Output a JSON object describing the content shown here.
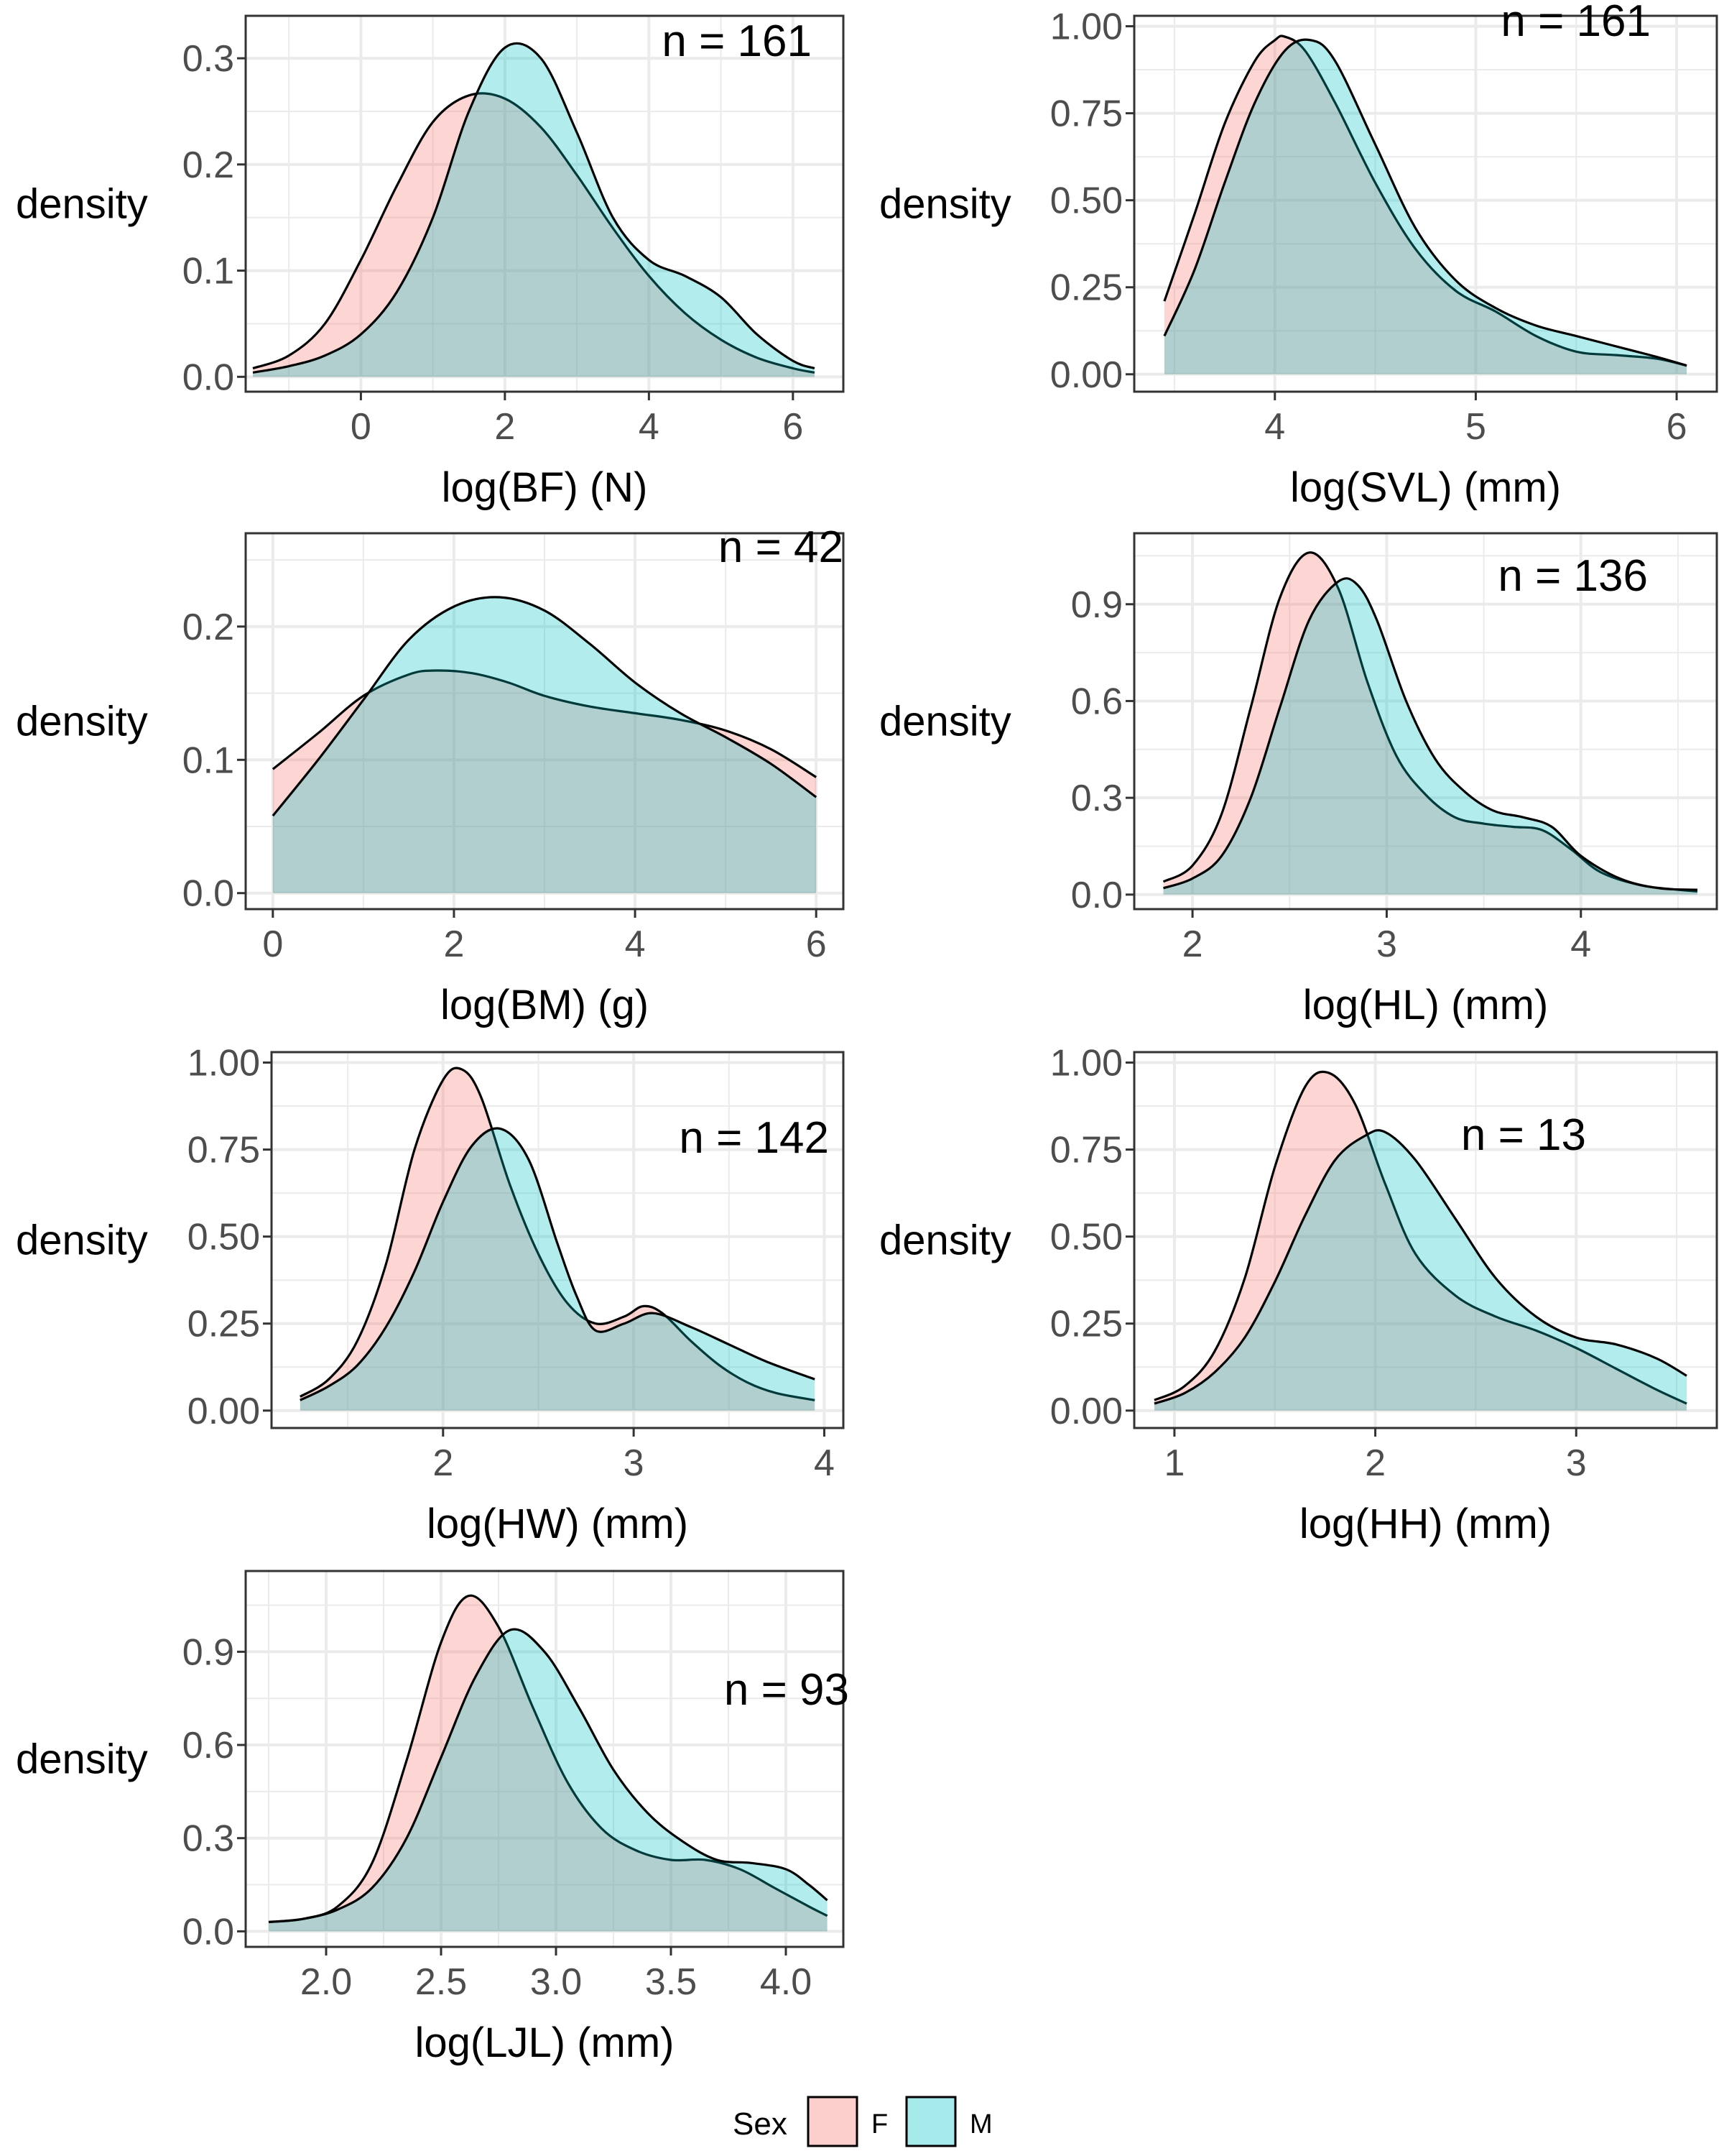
{
  "chart_data": [
    {
      "type": "area",
      "panel": "BF",
      "annotation": "n = 161",
      "xlabel": "log(BF) (N)",
      "ylabel": "density",
      "xlim": [
        -1.6,
        6.7
      ],
      "ylim": [
        -0.014,
        0.34
      ],
      "x_ticks": [
        0,
        2,
        4,
        6
      ],
      "x_tick_labels": [
        "0",
        "2",
        "4",
        "6"
      ],
      "y_ticks": [
        0,
        0.1,
        0.2,
        0.3
      ],
      "y_tick_labels": [
        "0.0",
        "0.1",
        "0.2",
        "0.3"
      ],
      "grid": true,
      "series": [
        {
          "name": "F",
          "x": [
            -1.5,
            -1,
            -0.5,
            0,
            0.5,
            1,
            1.5,
            2,
            2.5,
            3,
            3.5,
            4,
            4.5,
            5,
            5.5,
            6,
            6.3
          ],
          "values": [
            0.008,
            0.02,
            0.05,
            0.11,
            0.18,
            0.24,
            0.265,
            0.262,
            0.235,
            0.19,
            0.14,
            0.095,
            0.06,
            0.035,
            0.018,
            0.008,
            0.004
          ]
        },
        {
          "name": "M",
          "x": [
            -1.5,
            -1,
            -0.5,
            0,
            0.5,
            1,
            1.5,
            2,
            2.5,
            3,
            3.5,
            4,
            4.5,
            5,
            5.5,
            6,
            6.3
          ],
          "values": [
            0.004,
            0.01,
            0.02,
            0.04,
            0.08,
            0.15,
            0.25,
            0.31,
            0.3,
            0.23,
            0.15,
            0.11,
            0.095,
            0.075,
            0.04,
            0.015,
            0.008
          ]
        }
      ]
    },
    {
      "type": "area",
      "panel": "SVL",
      "annotation": "n = 161",
      "xlabel": "log(SVL) (mm)",
      "ylabel": "density",
      "xlim": [
        3.3,
        6.2
      ],
      "ylim": [
        -0.05,
        1.03
      ],
      "x_ticks": [
        4,
        5,
        6
      ],
      "x_tick_labels": [
        "4",
        "5",
        "6"
      ],
      "y_ticks": [
        0,
        0.25,
        0.5,
        0.75,
        1.0
      ],
      "y_tick_labels": [
        "0.00",
        "0.25",
        "0.50",
        "0.75",
        "1.00"
      ],
      "grid": true,
      "series": [
        {
          "name": "F",
          "x": [
            3.45,
            3.6,
            3.75,
            3.9,
            4.0,
            4.05,
            4.15,
            4.3,
            4.5,
            4.7,
            4.9,
            5.1,
            5.3,
            5.5,
            5.7,
            5.9,
            6.05
          ],
          "values": [
            0.21,
            0.46,
            0.72,
            0.9,
            0.96,
            0.97,
            0.93,
            0.78,
            0.55,
            0.36,
            0.24,
            0.18,
            0.11,
            0.065,
            0.055,
            0.045,
            0.025
          ]
        },
        {
          "name": "M",
          "x": [
            3.45,
            3.6,
            3.75,
            3.9,
            4.05,
            4.18,
            4.3,
            4.5,
            4.7,
            4.9,
            5.1,
            5.3,
            5.5,
            5.7,
            5.9,
            6.05
          ],
          "values": [
            0.11,
            0.3,
            0.55,
            0.78,
            0.93,
            0.96,
            0.9,
            0.66,
            0.42,
            0.27,
            0.19,
            0.14,
            0.11,
            0.08,
            0.05,
            0.025
          ]
        }
      ]
    },
    {
      "type": "area",
      "panel": "BM",
      "annotation": "n = 42",
      "xlabel": "log(BM) (g)",
      "ylabel": "density",
      "xlim": [
        -0.3,
        6.3
      ],
      "ylim": [
        -0.012,
        0.27
      ],
      "x_ticks": [
        0,
        2,
        4,
        6
      ],
      "x_tick_labels": [
        "0",
        "2",
        "4",
        "6"
      ],
      "y_ticks": [
        0,
        0.1,
        0.2
      ],
      "y_tick_labels": [
        "0.0",
        "0.1",
        "0.2"
      ],
      "grid": true,
      "series": [
        {
          "name": "F",
          "x": [
            0,
            0.5,
            1,
            1.5,
            1.8,
            2.2,
            2.6,
            3,
            3.5,
            4,
            4.5,
            5,
            5.5,
            6
          ],
          "values": [
            0.093,
            0.12,
            0.148,
            0.164,
            0.167,
            0.165,
            0.158,
            0.148,
            0.14,
            0.135,
            0.13,
            0.122,
            0.108,
            0.087
          ]
        },
        {
          "name": "M",
          "x": [
            0,
            0.5,
            1,
            1.5,
            2,
            2.5,
            3,
            3.5,
            4,
            4.5,
            5,
            5.5,
            6
          ],
          "values": [
            0.058,
            0.1,
            0.145,
            0.19,
            0.215,
            0.222,
            0.212,
            0.187,
            0.158,
            0.135,
            0.117,
            0.097,
            0.072
          ]
        }
      ]
    },
    {
      "type": "area",
      "panel": "HL",
      "annotation": "n = 136",
      "xlabel": "log(HL) (mm)",
      "ylabel": "density",
      "xlim": [
        1.7,
        4.7
      ],
      "ylim": [
        -0.045,
        1.12
      ],
      "x_ticks": [
        2,
        3,
        4
      ],
      "x_tick_labels": [
        "2",
        "3",
        "4"
      ],
      "y_ticks": [
        0,
        0.3,
        0.6,
        0.9
      ],
      "y_tick_labels": [
        "0.0",
        "0.3",
        "0.6",
        "0.9"
      ],
      "grid": true,
      "series": [
        {
          "name": "F",
          "x": [
            1.85,
            2.0,
            2.15,
            2.3,
            2.45,
            2.6,
            2.75,
            2.9,
            3.05,
            3.2,
            3.35,
            3.5,
            3.65,
            3.8,
            3.95,
            4.1,
            4.3,
            4.5,
            4.6
          ],
          "values": [
            0.04,
            0.09,
            0.25,
            0.58,
            0.92,
            1.06,
            0.95,
            0.66,
            0.43,
            0.31,
            0.24,
            0.22,
            0.21,
            0.2,
            0.14,
            0.07,
            0.03,
            0.015,
            0.01
          ]
        },
        {
          "name": "M",
          "x": [
            1.85,
            2.0,
            2.15,
            2.3,
            2.45,
            2.6,
            2.75,
            2.85,
            2.95,
            3.1,
            3.25,
            3.4,
            3.55,
            3.7,
            3.85,
            4.0,
            4.2,
            4.4,
            4.6
          ],
          "values": [
            0.02,
            0.05,
            0.12,
            0.3,
            0.58,
            0.85,
            0.97,
            0.96,
            0.85,
            0.6,
            0.42,
            0.32,
            0.26,
            0.24,
            0.21,
            0.12,
            0.05,
            0.02,
            0.015
          ]
        }
      ]
    },
    {
      "type": "area",
      "panel": "HW",
      "annotation": "n = 142",
      "xlabel": "log(HW) (mm)",
      "ylabel": "density",
      "xlim": [
        1.1,
        4.1
      ],
      "ylim": [
        -0.05,
        1.03
      ],
      "x_ticks": [
        2,
        3,
        4
      ],
      "x_tick_labels": [
        "2",
        "3",
        "4"
      ],
      "y_ticks": [
        0,
        0.25,
        0.5,
        0.75,
        1.0
      ],
      "y_tick_labels": [
        "0.00",
        "0.25",
        "0.50",
        "0.75",
        "1.00"
      ],
      "grid": true,
      "series": [
        {
          "name": "F",
          "x": [
            1.25,
            1.4,
            1.55,
            1.7,
            1.85,
            2.0,
            2.1,
            2.2,
            2.35,
            2.5,
            2.65,
            2.8,
            2.95,
            3.05,
            3.15,
            3.3,
            3.45,
            3.6,
            3.75,
            3.95
          ],
          "values": [
            0.04,
            0.09,
            0.2,
            0.42,
            0.75,
            0.95,
            0.98,
            0.9,
            0.65,
            0.45,
            0.31,
            0.25,
            0.27,
            0.3,
            0.28,
            0.2,
            0.13,
            0.08,
            0.05,
            0.03
          ]
        },
        {
          "name": "M",
          "x": [
            1.25,
            1.4,
            1.55,
            1.7,
            1.85,
            2.0,
            2.15,
            2.3,
            2.45,
            2.6,
            2.7,
            2.8,
            2.95,
            3.1,
            3.3,
            3.5,
            3.7,
            3.95
          ],
          "values": [
            0.03,
            0.07,
            0.13,
            0.24,
            0.4,
            0.6,
            0.76,
            0.81,
            0.72,
            0.48,
            0.33,
            0.23,
            0.25,
            0.28,
            0.24,
            0.19,
            0.14,
            0.09
          ]
        }
      ]
    },
    {
      "type": "area",
      "panel": "HH",
      "annotation": "n = 13",
      "xlabel": "log(HH) (mm)",
      "ylabel": "density",
      "xlim": [
        0.8,
        3.7
      ],
      "ylim": [
        -0.05,
        1.03
      ],
      "x_ticks": [
        1,
        2,
        3
      ],
      "x_tick_labels": [
        "1",
        "2",
        "3"
      ],
      "y_ticks": [
        0,
        0.25,
        0.5,
        0.75,
        1.0
      ],
      "y_tick_labels": [
        "0.00",
        "0.25",
        "0.50",
        "0.75",
        "1.00"
      ],
      "grid": true,
      "series": [
        {
          "name": "F",
          "x": [
            0.9,
            1.05,
            1.2,
            1.35,
            1.5,
            1.65,
            1.77,
            1.9,
            2.05,
            2.2,
            2.4,
            2.6,
            2.8,
            3.0,
            3.2,
            3.4,
            3.55
          ],
          "values": [
            0.03,
            0.07,
            0.17,
            0.38,
            0.7,
            0.93,
            0.97,
            0.88,
            0.65,
            0.45,
            0.33,
            0.27,
            0.23,
            0.18,
            0.12,
            0.06,
            0.02
          ]
        },
        {
          "name": "M",
          "x": [
            0.9,
            1.05,
            1.2,
            1.35,
            1.5,
            1.65,
            1.8,
            1.95,
            2.05,
            2.2,
            2.4,
            2.6,
            2.8,
            3.0,
            3.2,
            3.4,
            3.55
          ],
          "values": [
            0.02,
            0.05,
            0.11,
            0.21,
            0.37,
            0.56,
            0.72,
            0.79,
            0.8,
            0.72,
            0.55,
            0.38,
            0.27,
            0.21,
            0.19,
            0.15,
            0.1
          ]
        }
      ]
    },
    {
      "type": "area",
      "panel": "LJL",
      "annotation": "n = 93",
      "xlabel": "log(LJL) (mm)",
      "ylabel": "density",
      "xlim": [
        1.65,
        4.25
      ],
      "ylim": [
        -0.05,
        1.16
      ],
      "x_ticks": [
        2.0,
        2.5,
        3.0,
        3.5,
        4.0
      ],
      "x_tick_labels": [
        "2.0",
        "2.5",
        "3.0",
        "3.5",
        "4.0"
      ],
      "y_ticks": [
        0,
        0.3,
        0.6,
        0.9
      ],
      "y_tick_labels": [
        "0.0",
        "0.3",
        "0.6",
        "0.9"
      ],
      "grid": true,
      "series": [
        {
          "name": "F",
          "x": [
            1.75,
            1.9,
            2.05,
            2.2,
            2.35,
            2.5,
            2.62,
            2.75,
            2.9,
            3.05,
            3.2,
            3.35,
            3.5,
            3.65,
            3.8,
            3.95,
            4.1,
            4.18
          ],
          "values": [
            0.03,
            0.04,
            0.08,
            0.22,
            0.55,
            0.93,
            1.08,
            0.98,
            0.72,
            0.48,
            0.33,
            0.26,
            0.23,
            0.23,
            0.2,
            0.14,
            0.08,
            0.05
          ]
        },
        {
          "name": "M",
          "x": [
            1.75,
            1.9,
            2.05,
            2.2,
            2.35,
            2.5,
            2.65,
            2.8,
            2.95,
            3.1,
            3.25,
            3.4,
            3.55,
            3.7,
            3.85,
            4.0,
            4.1,
            4.18
          ],
          "values": [
            0.03,
            0.04,
            0.07,
            0.14,
            0.3,
            0.56,
            0.82,
            0.97,
            0.9,
            0.72,
            0.52,
            0.38,
            0.29,
            0.23,
            0.22,
            0.2,
            0.15,
            0.1
          ]
        }
      ]
    }
  ],
  "legend": {
    "title": "Sex",
    "items": [
      {
        "label": "F",
        "color": "#f8766d"
      },
      {
        "label": "M",
        "color": "#00bfc4"
      }
    ]
  },
  "colors": {
    "F_fill": "#f8766d",
    "M_fill": "#00bfc4",
    "outline": "#000000",
    "grid": "#ebebeb",
    "panel_border": "#333333"
  }
}
